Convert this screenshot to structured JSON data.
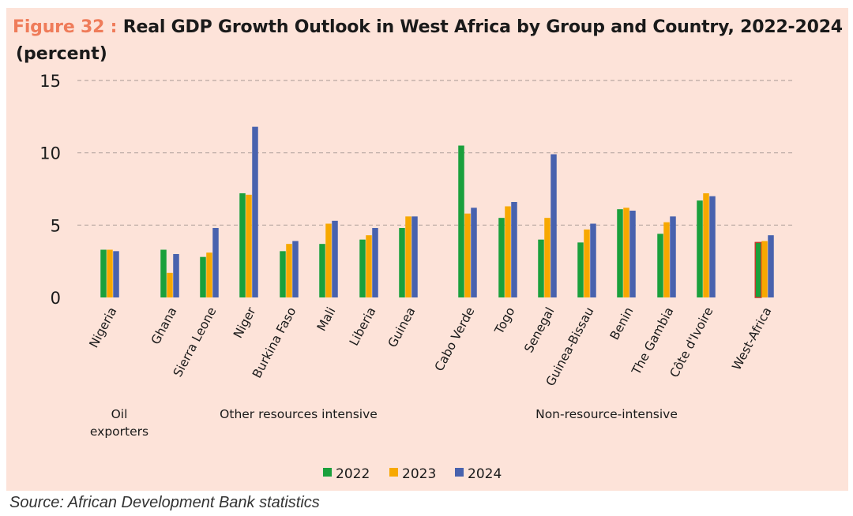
{
  "title": {
    "figure_label": "Figure 32 :",
    "text": "Real GDP Growth Outlook in West Africa by Group and Country, 2022-2024",
    "unit": "(percent)"
  },
  "source": "Source: African Development Bank statistics",
  "colors": {
    "background": "#fde3d9",
    "figure_label": "#ef7c5a",
    "grid": "#b8a8a2",
    "2022": "#1aa03c",
    "2023": "#f7a800",
    "2024": "#4862ae",
    "west_africa_2022": "#c0392b"
  },
  "chart_data": {
    "type": "bar",
    "title": "Real GDP Growth Outlook in West Africa by Group and Country, 2022-2024",
    "ylabel": "(percent)",
    "xlabel": "",
    "ylim": [
      0,
      15
    ],
    "yticks": [
      0,
      5,
      10,
      15
    ],
    "grid": true,
    "legend": "bottom-center",
    "categories": [
      "Nigeria",
      "Ghana",
      "Sierra Leone",
      "Niger",
      "Burkina Faso",
      "Mali",
      "Liberia",
      "Guinea",
      "Cabo Verde",
      "Togo",
      "Senegal",
      "Guinea-Bissau",
      "Benin",
      "The Gambia",
      "Côte d'Ivoire",
      "West-Africa"
    ],
    "series": [
      {
        "name": "2022",
        "values": [
          3.3,
          3.3,
          2.8,
          7.2,
          3.2,
          3.7,
          4.0,
          4.8,
          10.5,
          5.5,
          4.0,
          3.8,
          6.1,
          4.4,
          6.7,
          3.8
        ]
      },
      {
        "name": "2023",
        "values": [
          3.3,
          1.7,
          3.1,
          7.1,
          3.7,
          5.1,
          4.3,
          5.6,
          5.8,
          6.3,
          5.5,
          4.7,
          6.2,
          5.2,
          7.2,
          3.9
        ]
      },
      {
        "name": "2024",
        "values": [
          3.2,
          3.0,
          4.8,
          11.8,
          3.9,
          5.3,
          4.8,
          5.6,
          6.2,
          6.6,
          9.9,
          5.1,
          6.0,
          5.6,
          7.0,
          4.3
        ]
      }
    ],
    "groups": [
      {
        "label": "Oil\nexporters",
        "lines": [
          "Oil",
          "exporters"
        ],
        "members": [
          "Nigeria"
        ]
      },
      {
        "label": "Other resources intensive",
        "lines": [
          "Other resources intensive"
        ],
        "members": [
          "Ghana",
          "Sierra Leone",
          "Niger",
          "Burkina Faso",
          "Mali",
          "Liberia",
          "Guinea"
        ]
      },
      {
        "label": "Non-resource-intensive",
        "lines": [
          "Non-resource-intensive"
        ],
        "members": [
          "Cabo Verde",
          "Togo",
          "Senegal",
          "Guinea-Bissau",
          "Benin",
          "The Gambia",
          "Côte d'Ivoire"
        ]
      }
    ]
  }
}
